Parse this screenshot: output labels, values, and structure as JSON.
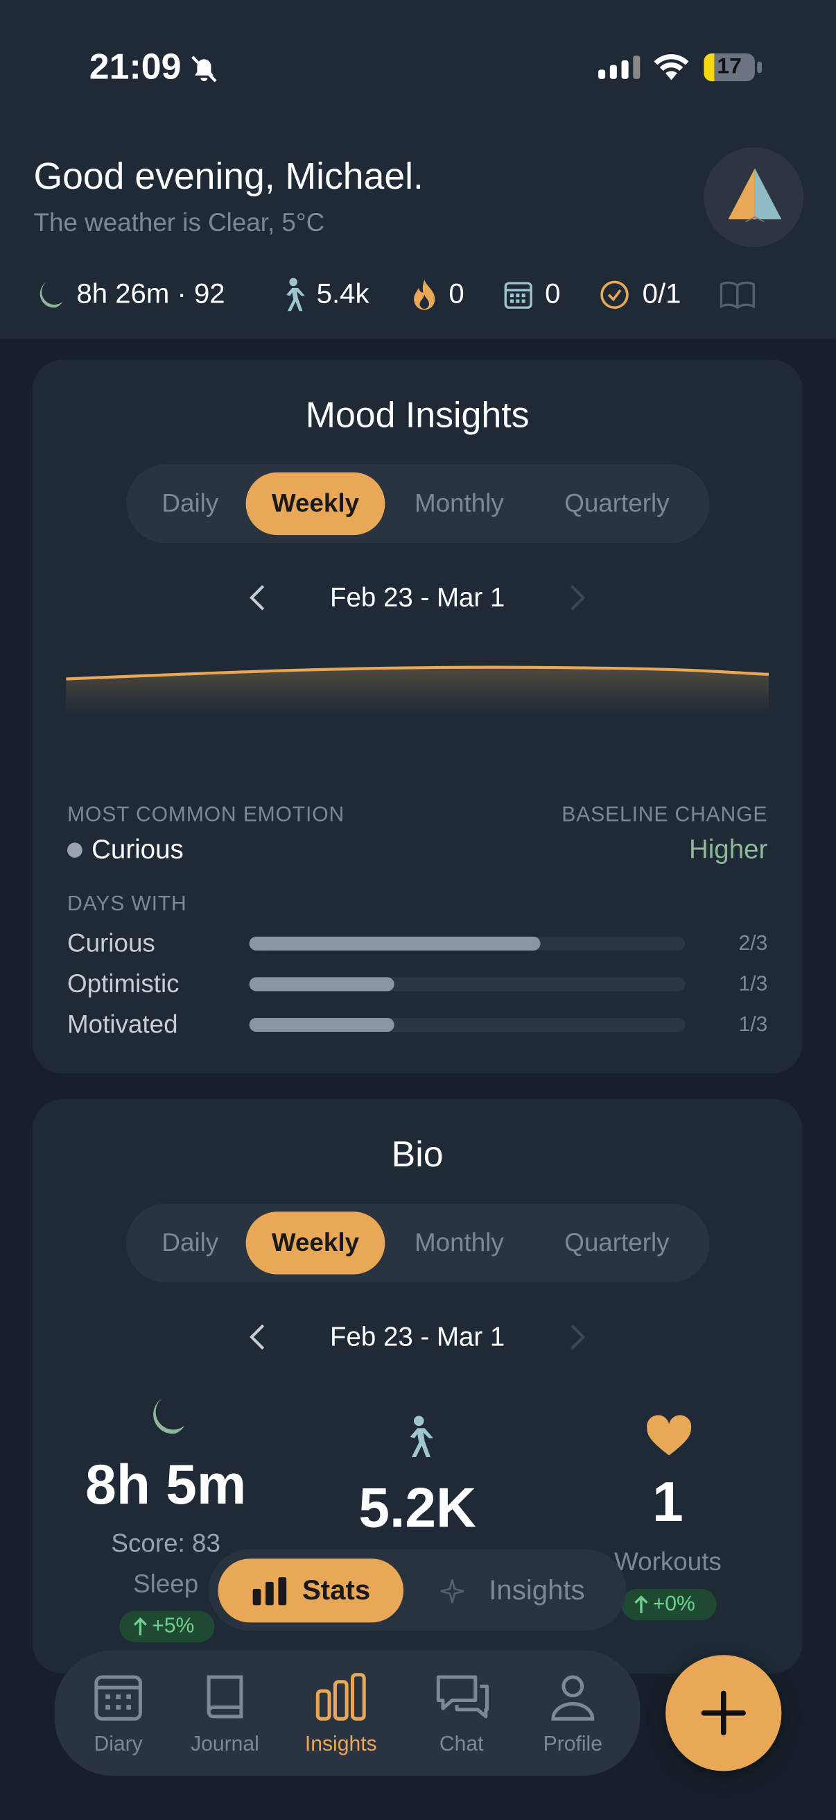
{
  "status_bar": {
    "time": "21:09",
    "battery": "17"
  },
  "header": {
    "greeting": "Good evening, Michael.",
    "weather": "The weather is Clear, 5°C",
    "stats": {
      "sleep": "8h 26m · 92",
      "steps": "5.4k",
      "streak": "0",
      "events": "0",
      "tasks": "0/1"
    }
  },
  "mood_insights": {
    "title": "Mood Insights",
    "tabs": [
      "Daily",
      "Weekly",
      "Monthly",
      "Quarterly"
    ],
    "active_tab": "Weekly",
    "date_range": "Feb 23 - Mar 1",
    "most_common_emotion_label": "MOST COMMON EMOTION",
    "most_common_emotion": "Curious",
    "baseline_change_label": "BASELINE CHANGE",
    "baseline_change": "Higher",
    "days_with_label": "DAYS WITH",
    "days_with": [
      {
        "emotion": "Curious",
        "count": "2/3"
      },
      {
        "emotion": "Optimistic",
        "count": "1/3"
      },
      {
        "emotion": "Motivated",
        "count": "1/3"
      }
    ]
  },
  "bio": {
    "title": "Bio",
    "tabs": [
      "Daily",
      "Weekly",
      "Monthly",
      "Quarterly"
    ],
    "active_tab": "Weekly",
    "date_range": "Feb 23 - Mar 1",
    "sleep": {
      "value": "8h 5m",
      "score": "Score: 83",
      "label": "Sleep",
      "change": "+5%"
    },
    "steps": {
      "value": "5.2K"
    },
    "workouts": {
      "value": "1",
      "label": "Workouts",
      "change": "+0%"
    }
  },
  "view_switch": {
    "options": [
      "Stats",
      "Insights"
    ],
    "active": "Stats"
  },
  "nav": {
    "items": [
      "Diary",
      "Journal",
      "Insights",
      "Chat",
      "Profile"
    ],
    "active": "Insights"
  }
}
